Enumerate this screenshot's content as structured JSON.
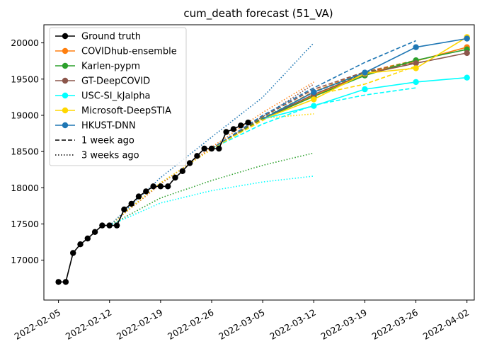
{
  "chart_data": {
    "type": "line",
    "title": "cum_death forecast (51_VA)",
    "xlabel": "",
    "ylabel": "",
    "xlim": [
      "2022-02-03",
      "2022-04-03"
    ],
    "ylim": [
      16450,
      20250
    ],
    "x_ticks": [
      "2022-02-05",
      "2022-02-12",
      "2022-02-19",
      "2022-02-26",
      "2022-03-05",
      "2022-03-12",
      "2022-03-19",
      "2022-03-26",
      "2022-04-02"
    ],
    "y_ticks": [
      17000,
      17500,
      18000,
      18500,
      19000,
      19500,
      20000
    ],
    "grid": false,
    "legend_position": "top-left",
    "legend": [
      {
        "label": "Ground truth",
        "color": "#000000",
        "style": "solid",
        "marker": true
      },
      {
        "label": "COVIDhub-ensemble",
        "color": "#ff7f0e",
        "style": "solid",
        "marker": true
      },
      {
        "label": "Karlen-pypm",
        "color": "#2ca02c",
        "style": "solid",
        "marker": true
      },
      {
        "label": "GT-DeepCOVID",
        "color": "#8c564b",
        "style": "solid",
        "marker": true
      },
      {
        "label": "USC-SI_kJalpha",
        "color": "#00ffff",
        "style": "solid",
        "marker": true
      },
      {
        "label": "Microsoft-DeepSTIA",
        "color": "#ffd700",
        "style": "solid",
        "marker": true
      },
      {
        "label": "HKUST-DNN",
        "color": "#1f77b4",
        "style": "solid",
        "marker": true
      },
      {
        "label": "1 week ago",
        "color": "#000000",
        "style": "dashed",
        "marker": false
      },
      {
        "label": "3 weeks ago",
        "color": "#000000",
        "style": "dotted",
        "marker": false
      }
    ],
    "ground_truth": {
      "color": "#000000",
      "x": [
        "2022-02-05",
        "2022-02-06",
        "2022-02-07",
        "2022-02-08",
        "2022-02-09",
        "2022-02-10",
        "2022-02-11",
        "2022-02-12",
        "2022-02-13",
        "2022-02-14",
        "2022-02-15",
        "2022-02-16",
        "2022-02-17",
        "2022-02-18",
        "2022-02-19",
        "2022-02-20",
        "2022-02-21",
        "2022-02-22",
        "2022-02-23",
        "2022-02-24",
        "2022-02-25",
        "2022-02-26",
        "2022-02-27",
        "2022-02-28",
        "2022-03-01",
        "2022-03-02",
        "2022-03-03"
      ],
      "y": [
        16700,
        16700,
        17100,
        17220,
        17300,
        17390,
        17480,
        17480,
        17480,
        17700,
        17780,
        17880,
        17950,
        18020,
        18020,
        18020,
        18140,
        18230,
        18340,
        18440,
        18540,
        18540,
        18540,
        18770,
        18810,
        18860,
        18900
      ]
    },
    "series": [
      {
        "name": "COVIDhub-ensemble",
        "color": "#ff7f0e",
        "style": "solid",
        "x": [
          "2022-03-05",
          "2022-03-12",
          "2022-03-19",
          "2022-03-26",
          "2022-04-02"
        ],
        "y": [
          18950,
          19270,
          19570,
          19750,
          19940
        ]
      },
      {
        "name": "Karlen-pypm",
        "color": "#2ca02c",
        "style": "solid",
        "x": [
          "2022-03-05",
          "2022-03-12",
          "2022-03-19",
          "2022-03-26",
          "2022-04-02"
        ],
        "y": [
          18950,
          19260,
          19550,
          19760,
          19910
        ]
      },
      {
        "name": "GT-DeepCOVID",
        "color": "#8c564b",
        "style": "solid",
        "x": [
          "2022-03-05",
          "2022-03-12",
          "2022-03-19",
          "2022-03-26",
          "2022-04-02"
        ],
        "y": [
          18950,
          19290,
          19570,
          19720,
          19860
        ]
      },
      {
        "name": "USC-SI_kJalpha",
        "color": "#00ffff",
        "style": "solid",
        "x": [
          "2022-03-05",
          "2022-03-12",
          "2022-03-19",
          "2022-03-26",
          "2022-04-02"
        ],
        "y": [
          18950,
          19130,
          19360,
          19460,
          19520
        ]
      },
      {
        "name": "Microsoft-DeepSTIA",
        "color": "#ffd700",
        "style": "solid",
        "x": [
          "2022-03-05",
          "2022-03-12",
          "2022-03-19",
          "2022-03-26",
          "2022-04-02"
        ],
        "y": [
          18950,
          19220,
          19580,
          19650,
          20080
        ]
      },
      {
        "name": "HKUST-DNN",
        "color": "#1f77b4",
        "style": "solid",
        "x": [
          "2022-03-05",
          "2022-03-12",
          "2022-03-19",
          "2022-03-26",
          "2022-04-02"
        ],
        "y": [
          18950,
          19320,
          19590,
          19940,
          20060
        ]
      },
      {
        "name": "COVIDhub-ensemble (1 week ago)",
        "color": "#ff7f0e",
        "style": "dashed",
        "x": [
          "2022-02-26",
          "2022-03-05",
          "2022-03-12",
          "2022-03-19",
          "2022-03-26"
        ],
        "y": [
          18540,
          18950,
          19330,
          19600,
          19760
        ]
      },
      {
        "name": "Karlen-pypm (1 week ago)",
        "color": "#2ca02c",
        "style": "dashed",
        "x": [
          "2022-02-26",
          "2022-03-05",
          "2022-03-12",
          "2022-03-19",
          "2022-03-26"
        ],
        "y": [
          18540,
          18960,
          19320,
          19580,
          19760
        ]
      },
      {
        "name": "GT-DeepCOVID (1 week ago)",
        "color": "#8c564b",
        "style": "dashed",
        "x": [
          "2022-02-26",
          "2022-03-05",
          "2022-03-12",
          "2022-03-19",
          "2022-03-26"
        ],
        "y": [
          18540,
          18980,
          19360,
          19600,
          19730
        ]
      },
      {
        "name": "USC-SI_kJalpha (1 week ago)",
        "color": "#00ffff",
        "style": "dashed",
        "x": [
          "2022-02-26",
          "2022-03-05",
          "2022-03-12",
          "2022-03-19",
          "2022-03-26"
        ],
        "y": [
          18540,
          18880,
          19140,
          19280,
          19380
        ]
      },
      {
        "name": "Microsoft-DeepSTIA (1 week ago)",
        "color": "#ffd700",
        "style": "dashed",
        "x": [
          "2022-02-26",
          "2022-03-05",
          "2022-03-12",
          "2022-03-19",
          "2022-03-26"
        ],
        "y": [
          18540,
          18930,
          19280,
          19430,
          19680
        ]
      },
      {
        "name": "HKUST-DNN (1 week ago)",
        "color": "#1f77b4",
        "style": "dashed",
        "x": [
          "2022-02-26",
          "2022-03-05",
          "2022-03-12",
          "2022-03-19",
          "2022-03-26"
        ],
        "y": [
          18540,
          19000,
          19380,
          19730,
          20030
        ]
      },
      {
        "name": "COVIDhub-ensemble (3 weeks ago)",
        "color": "#ff7f0e",
        "style": "dotted",
        "x": [
          "2022-02-12",
          "2022-02-19",
          "2022-02-26",
          "2022-03-05",
          "2022-03-12"
        ],
        "y": [
          17480,
          18050,
          18560,
          19040,
          19460
        ]
      },
      {
        "name": "Karlen-pypm (3 weeks ago)",
        "color": "#2ca02c",
        "style": "dotted",
        "x": [
          "2022-02-12",
          "2022-02-19",
          "2022-02-26",
          "2022-03-05",
          "2022-03-12"
        ],
        "y": [
          17480,
          17860,
          18100,
          18310,
          18480
        ]
      },
      {
        "name": "GT-DeepCOVID (3 weeks ago)",
        "color": "#8c564b",
        "style": "dotted",
        "x": [
          "2022-02-12",
          "2022-02-19",
          "2022-02-26",
          "2022-03-05",
          "2022-03-12"
        ],
        "y": [
          17480,
          18060,
          18540,
          18980,
          19430
        ]
      },
      {
        "name": "USC-SI_kJalpha (3 weeks ago)",
        "color": "#00ffff",
        "style": "dotted",
        "x": [
          "2022-02-12",
          "2022-02-19",
          "2022-02-26",
          "2022-03-05",
          "2022-03-12"
        ],
        "y": [
          17480,
          17790,
          17960,
          18080,
          18160
        ]
      },
      {
        "name": "Microsoft-DeepSTIA (3 weeks ago)",
        "color": "#ffd700",
        "style": "dotted",
        "x": [
          "2022-02-12",
          "2022-02-19",
          "2022-02-26",
          "2022-03-05",
          "2022-03-12"
        ],
        "y": [
          17480,
          18070,
          18530,
          18960,
          19020
        ]
      },
      {
        "name": "HKUST-DNN (3 weeks ago)",
        "color": "#1f77b4",
        "style": "dotted",
        "x": [
          "2022-02-12",
          "2022-02-19",
          "2022-02-26",
          "2022-03-05",
          "2022-03-12"
        ],
        "y": [
          17480,
          18140,
          18700,
          19250,
          20000
        ]
      }
    ]
  }
}
